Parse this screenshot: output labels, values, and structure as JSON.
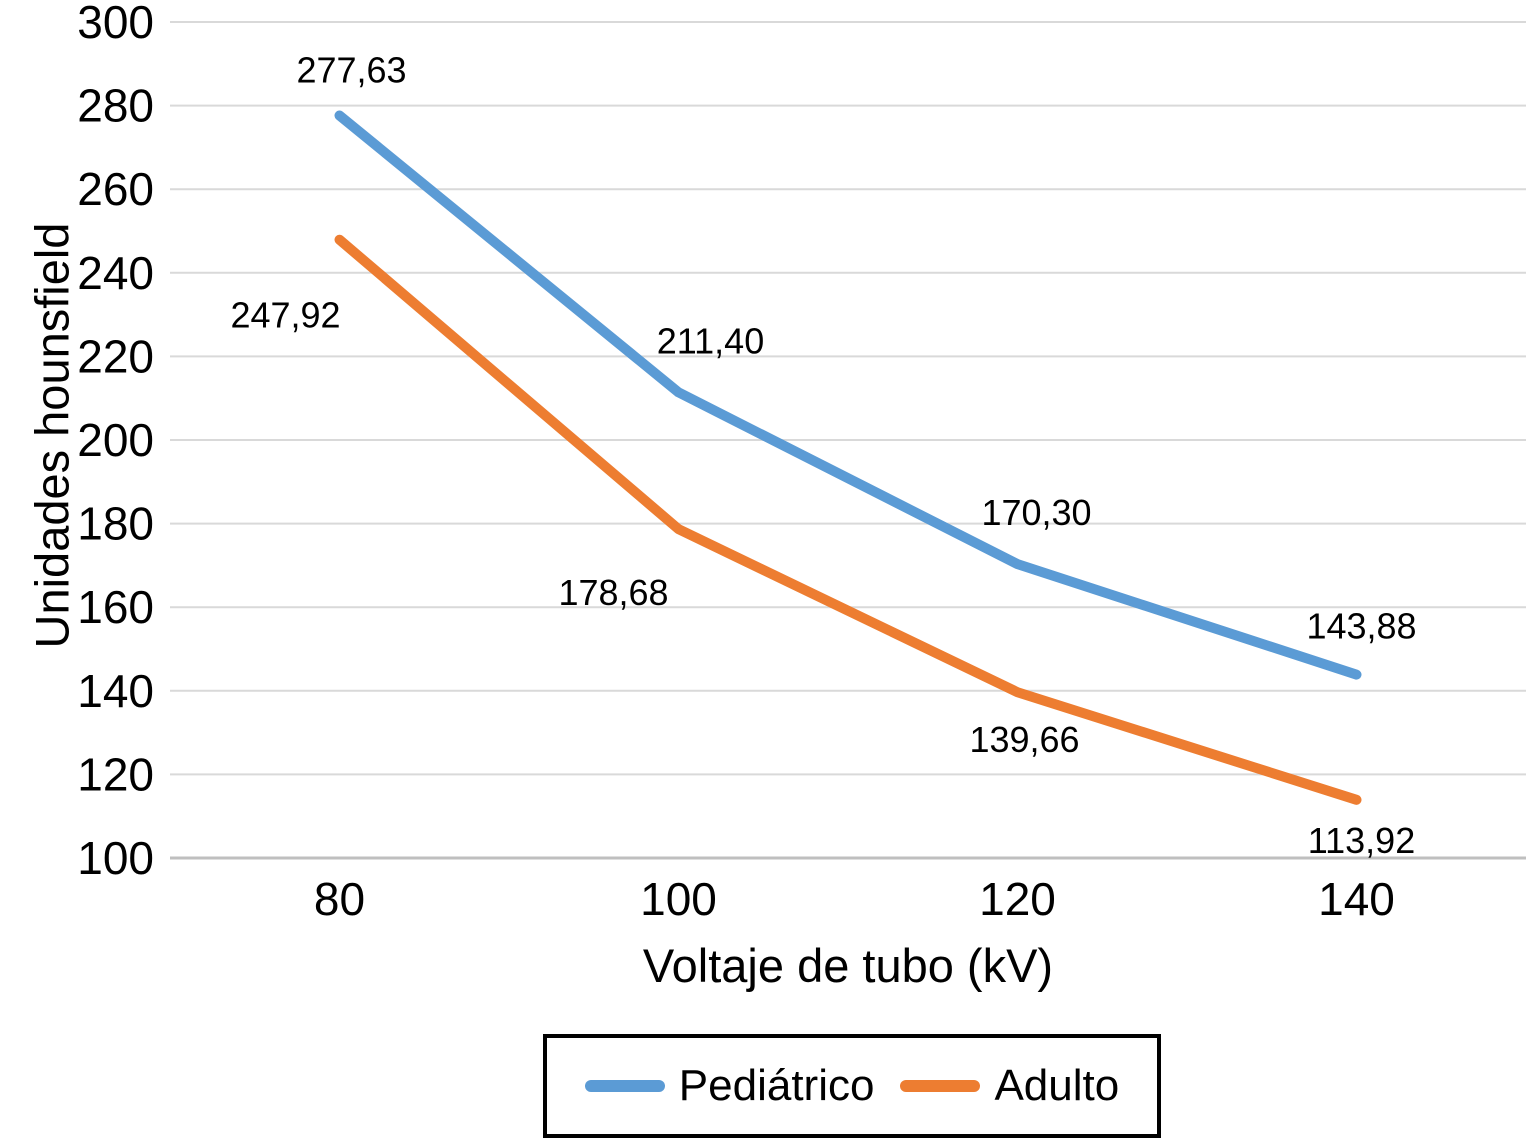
{
  "chart_data": {
    "type": "line",
    "title": "",
    "xlabel": "Voltaje de tubo (kV)",
    "ylabel": "Unidades hounsfield",
    "categories": [
      "80",
      "100",
      "120",
      "140"
    ],
    "series": [
      {
        "name": "Pediátrico",
        "color": "#5B9BD5",
        "values": [
          277.63,
          211.4,
          170.3,
          143.88
        ],
        "labels": [
          "277,63",
          "211,40",
          "170,30",
          "143,88"
        ],
        "label_offsets": [
          [
            12,
            -33
          ],
          [
            32,
            -39
          ],
          [
            19,
            -39
          ],
          [
            5,
            -36
          ]
        ]
      },
      {
        "name": "Adulto",
        "color": "#ED7D31",
        "values": [
          247.92,
          178.68,
          139.66,
          113.92
        ],
        "labels": [
          "247,92",
          "178,68",
          "139,66",
          "113,92"
        ],
        "label_offsets": [
          [
            -54,
            88
          ],
          [
            -65,
            76
          ],
          [
            7,
            60
          ],
          [
            5,
            53
          ]
        ]
      }
    ],
    "ylim": [
      100,
      300
    ],
    "yticks": [
      100,
      120,
      140,
      160,
      180,
      200,
      220,
      240,
      260,
      280,
      300
    ],
    "grid": true,
    "legend_position": "bottom",
    "gridline_color": "#D9D9D9",
    "axisline_color": "#BFBFBF",
    "text_color": "#000000",
    "line_width": 10,
    "tick_font_size": 46,
    "data_label_font_size": 36
  }
}
